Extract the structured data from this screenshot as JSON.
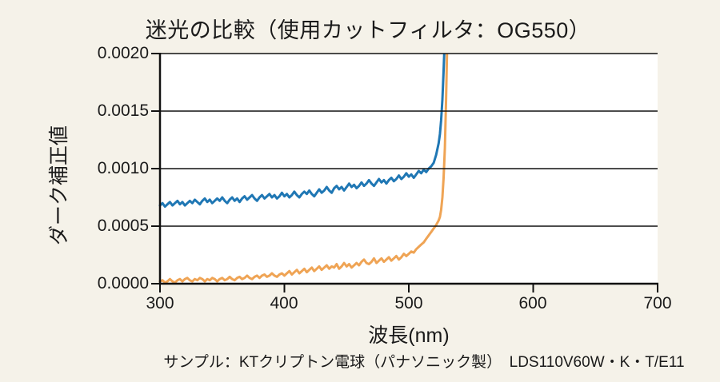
{
  "caption": "サンプル：KTクリプトン電球（パナソニック製）　LDS110V60W・K・T/E11",
  "colors": {
    "background": "#f5f2e9",
    "plot_background": "#ffffff",
    "axis": "#111111",
    "blue_series": "#1f77b4",
    "orange_series": "#efa455"
  },
  "chart_data": {
    "type": "line",
    "title": "迷光の比較（使用カットフィルタ：OG550）",
    "xlabel": "波長(nm)",
    "ylabel": "ダーク補正値",
    "xlim": [
      300,
      700
    ],
    "ylim": [
      0,
      0.002
    ],
    "xticks": [
      300,
      400,
      500,
      600,
      700
    ],
    "yticks": [
      0,
      0.0005,
      0.001,
      0.0015,
      0.002
    ],
    "xtick_labels": [
      "300",
      "400",
      "500",
      "600",
      "700"
    ],
    "ytick_labels": [
      "0.0000",
      "0.0005",
      "0.0010",
      "0.0015",
      "0.0020"
    ],
    "grid": "horizontal",
    "legend": "none",
    "value_scale": 1e-05,
    "series": [
      {
        "name": "series-blue",
        "color": "#1f77b4",
        "stroke_width": 3,
        "points": [
          [
            300,
            68
          ],
          [
            302,
            70
          ],
          [
            304,
            67
          ],
          [
            306,
            69
          ],
          [
            308,
            71
          ],
          [
            310,
            68
          ],
          [
            312,
            70
          ],
          [
            314,
            72
          ],
          [
            316,
            69
          ],
          [
            318,
            71
          ],
          [
            320,
            68
          ],
          [
            322,
            70
          ],
          [
            324,
            72
          ],
          [
            326,
            70
          ],
          [
            328,
            73
          ],
          [
            330,
            71
          ],
          [
            332,
            69
          ],
          [
            334,
            72
          ],
          [
            336,
            74
          ],
          [
            338,
            71
          ],
          [
            340,
            73
          ],
          [
            342,
            70
          ],
          [
            344,
            72
          ],
          [
            346,
            74
          ],
          [
            348,
            72
          ],
          [
            350,
            75
          ],
          [
            352,
            72
          ],
          [
            354,
            70
          ],
          [
            356,
            73
          ],
          [
            358,
            75
          ],
          [
            360,
            72
          ],
          [
            362,
            74
          ],
          [
            364,
            71
          ],
          [
            366,
            74
          ],
          [
            368,
            76
          ],
          [
            370,
            73
          ],
          [
            372,
            75
          ],
          [
            374,
            77
          ],
          [
            376,
            74
          ],
          [
            378,
            72
          ],
          [
            380,
            75
          ],
          [
            382,
            77
          ],
          [
            384,
            74
          ],
          [
            386,
            76
          ],
          [
            388,
            78
          ],
          [
            390,
            75
          ],
          [
            392,
            77
          ],
          [
            394,
            74
          ],
          [
            396,
            76
          ],
          [
            398,
            79
          ],
          [
            400,
            76
          ],
          [
            402,
            78
          ],
          [
            404,
            75
          ],
          [
            406,
            77
          ],
          [
            408,
            80
          ],
          [
            410,
            77
          ],
          [
            412,
            75
          ],
          [
            414,
            78
          ],
          [
            416,
            80
          ],
          [
            418,
            78
          ],
          [
            420,
            81
          ],
          [
            422,
            78
          ],
          [
            424,
            76
          ],
          [
            426,
            79
          ],
          [
            428,
            82
          ],
          [
            430,
            79
          ],
          [
            432,
            81
          ],
          [
            434,
            84
          ],
          [
            436,
            81
          ],
          [
            438,
            79
          ],
          [
            440,
            83
          ],
          [
            442,
            85
          ],
          [
            444,
            82
          ],
          [
            446,
            84
          ],
          [
            448,
            81
          ],
          [
            450,
            84
          ],
          [
            452,
            87
          ],
          [
            454,
            84
          ],
          [
            456,
            86
          ],
          [
            458,
            83
          ],
          [
            460,
            85
          ],
          [
            462,
            88
          ],
          [
            464,
            85
          ],
          [
            466,
            87
          ],
          [
            468,
            90
          ],
          [
            470,
            87
          ],
          [
            472,
            85
          ],
          [
            474,
            88
          ],
          [
            476,
            91
          ],
          [
            478,
            88
          ],
          [
            480,
            90
          ],
          [
            482,
            87
          ],
          [
            484,
            90
          ],
          [
            486,
            92
          ],
          [
            488,
            89
          ],
          [
            490,
            91
          ],
          [
            492,
            94
          ],
          [
            494,
            91
          ],
          [
            496,
            93
          ],
          [
            498,
            96
          ],
          [
            500,
            93
          ],
          [
            502,
            95
          ],
          [
            504,
            92
          ],
          [
            506,
            95
          ],
          [
            508,
            98
          ],
          [
            510,
            96
          ],
          [
            512,
            99
          ],
          [
            514,
            97
          ],
          [
            516,
            100
          ],
          [
            518,
            102
          ],
          [
            520,
            105
          ],
          [
            522,
            112
          ],
          [
            524,
            122
          ],
          [
            525,
            130
          ],
          [
            526,
            142
          ],
          [
            527,
            160
          ],
          [
            528,
            185
          ],
          [
            529,
            215
          ]
        ]
      },
      {
        "name": "series-orange",
        "color": "#efa455",
        "stroke_width": 3,
        "points": [
          [
            300,
            2
          ],
          [
            302,
            3
          ],
          [
            304,
            1
          ],
          [
            306,
            2
          ],
          [
            308,
            4
          ],
          [
            310,
            2
          ],
          [
            312,
            1
          ],
          [
            314,
            3
          ],
          [
            316,
            4
          ],
          [
            318,
            2
          ],
          [
            320,
            4
          ],
          [
            322,
            5
          ],
          [
            324,
            3
          ],
          [
            326,
            2
          ],
          [
            328,
            4
          ],
          [
            330,
            3
          ],
          [
            332,
            5
          ],
          [
            334,
            4
          ],
          [
            336,
            2
          ],
          [
            338,
            4
          ],
          [
            340,
            3
          ],
          [
            342,
            5
          ],
          [
            344,
            4
          ],
          [
            346,
            2
          ],
          [
            348,
            4
          ],
          [
            350,
            5
          ],
          [
            352,
            3
          ],
          [
            354,
            4
          ],
          [
            356,
            6
          ],
          [
            358,
            4
          ],
          [
            360,
            3
          ],
          [
            362,
            5
          ],
          [
            364,
            6
          ],
          [
            366,
            4
          ],
          [
            368,
            5
          ],
          [
            370,
            7
          ],
          [
            372,
            5
          ],
          [
            374,
            4
          ],
          [
            376,
            6
          ],
          [
            378,
            7
          ],
          [
            380,
            5
          ],
          [
            382,
            7
          ],
          [
            384,
            8
          ],
          [
            386,
            6
          ],
          [
            388,
            7
          ],
          [
            390,
            9
          ],
          [
            392,
            7
          ],
          [
            394,
            6
          ],
          [
            396,
            8
          ],
          [
            398,
            9
          ],
          [
            400,
            7
          ],
          [
            402,
            9
          ],
          [
            404,
            11
          ],
          [
            406,
            8
          ],
          [
            408,
            10
          ],
          [
            410,
            12
          ],
          [
            412,
            9
          ],
          [
            414,
            11
          ],
          [
            416,
            13
          ],
          [
            418,
            10
          ],
          [
            420,
            12
          ],
          [
            422,
            14
          ],
          [
            424,
            11
          ],
          [
            426,
            13
          ],
          [
            428,
            15
          ],
          [
            430,
            12
          ],
          [
            432,
            14
          ],
          [
            434,
            16
          ],
          [
            436,
            13
          ],
          [
            438,
            15
          ],
          [
            440,
            14
          ],
          [
            442,
            17
          ],
          [
            444,
            13
          ],
          [
            446,
            15
          ],
          [
            448,
            18
          ],
          [
            450,
            15
          ],
          [
            452,
            17
          ],
          [
            454,
            14
          ],
          [
            456,
            16
          ],
          [
            458,
            18
          ],
          [
            460,
            16
          ],
          [
            462,
            19
          ],
          [
            464,
            21
          ],
          [
            466,
            18
          ],
          [
            468,
            17
          ],
          [
            470,
            19
          ],
          [
            472,
            22
          ],
          [
            474,
            18
          ],
          [
            476,
            20
          ],
          [
            478,
            22
          ],
          [
            480,
            19
          ],
          [
            482,
            21
          ],
          [
            484,
            23
          ],
          [
            486,
            20
          ],
          [
            488,
            22
          ],
          [
            490,
            24
          ],
          [
            492,
            21
          ],
          [
            494,
            23
          ],
          [
            496,
            26
          ],
          [
            498,
            24
          ],
          [
            500,
            26
          ],
          [
            502,
            28
          ],
          [
            504,
            27
          ],
          [
            506,
            30
          ],
          [
            508,
            32
          ],
          [
            510,
            34
          ],
          [
            512,
            36
          ],
          [
            514,
            39
          ],
          [
            516,
            42
          ],
          [
            518,
            45
          ],
          [
            520,
            48
          ],
          [
            522,
            51
          ],
          [
            524,
            55
          ],
          [
            525,
            58
          ],
          [
            526,
            64
          ],
          [
            527,
            75
          ],
          [
            528,
            92
          ],
          [
            529,
            118
          ],
          [
            530,
            160
          ],
          [
            531,
            215
          ]
        ]
      }
    ]
  }
}
